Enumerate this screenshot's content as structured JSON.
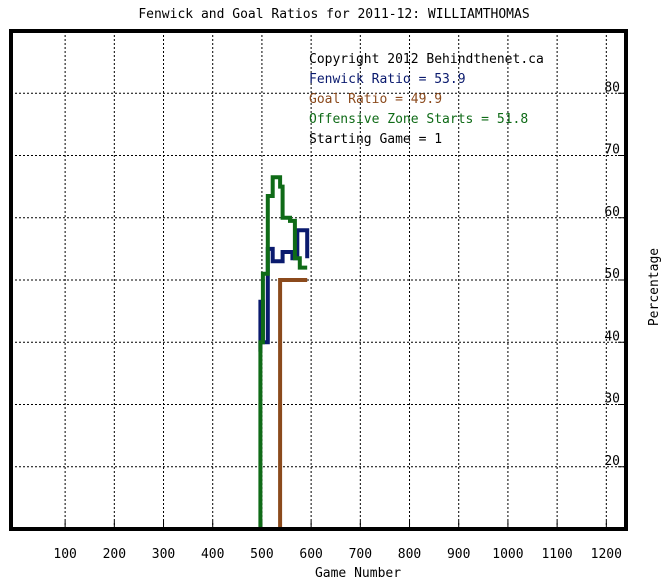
{
  "chart_data": {
    "type": "line",
    "title": "Fenwick and Goal Ratios for 2011-12: WILLIAMTHOMAS",
    "xlabel": "Game Number",
    "ylabel": "Percentage",
    "xlim": [
      -10,
      1240
    ],
    "ylim": [
      10,
      90
    ],
    "x_ticks": [
      100,
      200,
      300,
      400,
      500,
      600,
      700,
      800,
      900,
      1000,
      1100,
      1200
    ],
    "y_ticks": [
      20,
      30,
      40,
      50,
      60,
      70,
      80
    ],
    "grid": true,
    "legend_position": "top-right",
    "info_lines": [
      {
        "text": "Copyright 2012 Behindthenet.ca",
        "color": "#000000"
      },
      {
        "text": "Fenwick Ratio = 53.9",
        "color": "#0a1a6e"
      },
      {
        "text": "Goal Ratio = 49.9",
        "color": "#8b4a1c"
      },
      {
        "text": "Offensive Zone Starts = 51.8",
        "color": "#0f6b17"
      },
      {
        "text": "Starting Game = 1",
        "color": "#000000"
      }
    ],
    "series": [
      {
        "name": "Fenwick Ratio",
        "color": "#0a1a6e",
        "x": [
          497,
          497,
          502,
          502,
          512,
          512,
          522,
          522,
          532,
          532,
          542,
          542,
          552,
          552,
          562,
          562,
          572,
          572,
          582,
          582,
          592,
          592
        ],
        "y": [
          38.5,
          46.5,
          46.5,
          40,
          40,
          55,
          55,
          53,
          53,
          53,
          53,
          54.5,
          54.5,
          54.5,
          54.5,
          53.5,
          53.5,
          58,
          58,
          58,
          58,
          53.5
        ]
      },
      {
        "name": "Goal Ratio",
        "color": "#8b4a1c",
        "x": [
          537,
          537,
          547,
          557,
          567,
          577,
          587,
          592
        ],
        "y": [
          10,
          50,
          50,
          50,
          50,
          50,
          50,
          50
        ]
      },
      {
        "name": "Offensive Zone Starts",
        "color": "#0f6b17",
        "x": [
          497,
          497,
          502,
          502,
          512,
          512,
          522,
          522,
          537,
          537,
          542,
          542,
          557,
          557,
          567,
          567,
          577,
          577,
          592
        ],
        "y": [
          10,
          40,
          40,
          51,
          51,
          63.5,
          63.5,
          66.5,
          66.5,
          65,
          65,
          60,
          60,
          59.5,
          59.5,
          53.5,
          53.5,
          52,
          52
        ]
      }
    ]
  }
}
